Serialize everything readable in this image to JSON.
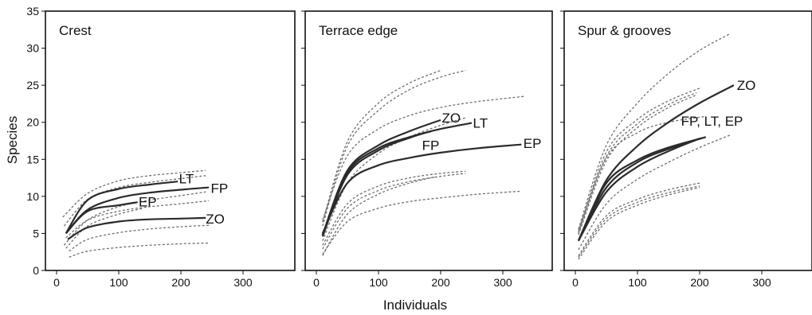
{
  "chart_data": {
    "type": "line",
    "ylabel": "Species",
    "xlabel": "Individuals",
    "xlim": [
      0,
      390
    ],
    "ylim": [
      0,
      35
    ],
    "x_ticks": [
      0,
      100,
      200,
      300
    ],
    "y_ticks": [
      0,
      5,
      10,
      15,
      20,
      25,
      30,
      35
    ],
    "grid": false,
    "panels": [
      {
        "title": "Crest",
        "series": [
          {
            "name": "LT",
            "style": "solid",
            "x": [
              15,
              50,
              100,
              150,
              195
            ],
            "y": [
              5,
              9.5,
              11.0,
              11.6,
              12.0
            ]
          },
          {
            "name": "FP",
            "style": "solid",
            "x": [
              15,
              50,
              100,
              150,
              200,
              245
            ],
            "y": [
              5,
              8.2,
              9.8,
              10.5,
              10.9,
              11.2
            ]
          },
          {
            "name": "EP",
            "style": "solid",
            "x": [
              15,
              50,
              100,
              130
            ],
            "y": [
              5,
              8.0,
              8.8,
              9.2
            ]
          },
          {
            "name": "ZO",
            "style": "solid",
            "x": [
              18,
              50,
              100,
              150,
              200,
              240
            ],
            "y": [
              4.2,
              5.8,
              6.6,
              6.9,
              7.0,
              7.1
            ]
          },
          {
            "name": "",
            "style": "dotted",
            "x": [
              10,
              50,
              100,
              150,
              200,
              240
            ],
            "y": [
              7.2,
              10.4,
              12.1,
              12.8,
              13.2,
              13.5
            ]
          },
          {
            "name": "",
            "style": "dotted",
            "x": [
              12,
              50,
              100,
              150,
              200,
              240
            ],
            "y": [
              6.0,
              9.6,
              11.2,
              11.9,
              12.4,
              12.8
            ]
          },
          {
            "name": "",
            "style": "dotted",
            "x": [
              12,
              50,
              100,
              150,
              200,
              240
            ],
            "y": [
              3.4,
              6.8,
              8.6,
              9.5,
              10.1,
              10.6
            ]
          },
          {
            "name": "",
            "style": "dotted",
            "x": [
              15,
              50,
              100,
              140
            ],
            "y": [
              3.0,
              6.0,
              7.6,
              8.4
            ]
          },
          {
            "name": "",
            "style": "dotted",
            "x": [
              15,
              50,
              100,
              150,
              200,
              245
            ],
            "y": [
              4.4,
              6.8,
              8.0,
              8.6,
              9.0,
              9.4
            ]
          },
          {
            "name": "",
            "style": "dotted",
            "x": [
              20,
              50,
              100,
              150,
              200,
              245
            ],
            "y": [
              2.6,
              4.2,
              5.1,
              5.6,
              5.9,
              6.1
            ]
          },
          {
            "name": "",
            "style": "dotted",
            "x": [
              20,
              50,
              100,
              150,
              200,
              245
            ],
            "y": [
              1.8,
              2.6,
              3.1,
              3.4,
              3.6,
              3.7
            ]
          }
        ],
        "labels": [
          {
            "text": "LT",
            "x": 197,
            "y": 12.4
          },
          {
            "text": "FP",
            "x": 248,
            "y": 11.1
          },
          {
            "text": "EP",
            "x": 132,
            "y": 9.3
          },
          {
            "text": "ZO",
            "x": 240,
            "y": 7.0
          }
        ]
      },
      {
        "title": "Terrace edge",
        "series": [
          {
            "name": "ZO",
            "style": "solid",
            "x": [
              10,
              50,
              100,
              150,
              200
            ],
            "y": [
              4.8,
              13.5,
              16.9,
              18.8,
              20.3
            ]
          },
          {
            "name": "LT",
            "style": "solid",
            "x": [
              10,
              50,
              100,
              150,
              200,
              250
            ],
            "y": [
              4.6,
              13.2,
              16.5,
              18.0,
              19.1,
              19.9
            ]
          },
          {
            "name": "FP",
            "style": "solid",
            "x": [
              10,
              50,
              100,
              150,
              185
            ],
            "y": [
              4.6,
              12.9,
              16.2,
              17.9,
              18.8
            ]
          },
          {
            "name": "EP",
            "style": "solid",
            "x": [
              10,
              50,
              100,
              150,
              200,
              260,
              330
            ],
            "y": [
              5.0,
              11.8,
              14.2,
              15.2,
              15.9,
              16.5,
              17.0
            ]
          },
          {
            "name": "",
            "style": "dotted",
            "x": [
              10,
              50,
              100,
              150,
              200
            ],
            "y": [
              6.5,
              17.4,
              22.6,
              25.3,
              27.0
            ]
          },
          {
            "name": "",
            "style": "dotted",
            "x": [
              10,
              50,
              100,
              150,
              200,
              240
            ],
            "y": [
              6.0,
              16.8,
              21.6,
              24.4,
              26.1,
              27.0
            ]
          },
          {
            "name": "",
            "style": "dotted",
            "x": [
              10,
              50,
              100,
              150,
              200,
              260,
              335
            ],
            "y": [
              6.8,
              15.5,
              19.1,
              20.9,
              22.0,
              22.8,
              23.5
            ]
          },
          {
            "name": "",
            "style": "dotted",
            "x": [
              10,
              50,
              100,
              150,
              200,
              240
            ],
            "y": [
              4.0,
              11.8,
              15.8,
              18.0,
              19.6,
              20.6
            ]
          },
          {
            "name": "",
            "style": "dotted",
            "x": [
              10,
              50,
              100,
              150,
              200,
              240
            ],
            "y": [
              3.4,
              9.0,
              11.4,
              12.5,
              13.1,
              13.4
            ]
          },
          {
            "name": "",
            "style": "dotted",
            "x": [
              10,
              50,
              100,
              150,
              200,
              240
            ],
            "y": [
              2.9,
              8.4,
              10.8,
              12.0,
              12.7,
              13.1
            ]
          },
          {
            "name": "",
            "style": "dotted",
            "x": [
              10,
              50,
              100,
              150,
              200,
              260,
              330
            ],
            "y": [
              2.2,
              6.6,
              8.4,
              9.3,
              9.8,
              10.3,
              10.7
            ]
          },
          {
            "name": "",
            "style": "dotted",
            "x": [
              10,
              50,
              100,
              150,
              190
            ],
            "y": [
              2.0,
              7.6,
              10.3,
              11.8,
              12.6
            ]
          }
        ],
        "labels": [
          {
            "text": "ZO",
            "x": 202,
            "y": 20.6
          },
          {
            "text": "LT",
            "x": 252,
            "y": 19.9
          },
          {
            "text": "FP",
            "x": 170,
            "y": 16.9
          },
          {
            "text": "EP",
            "x": 333,
            "y": 17.2
          }
        ]
      },
      {
        "title": "Spur & grooves",
        "series": [
          {
            "name": "ZO",
            "style": "solid",
            "x": [
              5,
              50,
              100,
              150,
              200,
              255
            ],
            "y": [
              4.0,
              12.2,
              16.8,
              20.0,
              22.6,
              25.0
            ]
          },
          {
            "name": "FP",
            "style": "solid",
            "x": [
              5,
              50,
              100,
              150,
              210
            ],
            "y": [
              4.0,
              11.8,
              14.9,
              16.6,
              18.0
            ]
          },
          {
            "name": "LT",
            "style": "solid",
            "x": [
              5,
              50,
              100,
              150,
              205
            ],
            "y": [
              4.0,
              11.2,
              14.6,
              16.4,
              17.9
            ]
          },
          {
            "name": "EP",
            "style": "solid",
            "x": [
              5,
              50,
              100,
              150,
              200
            ],
            "y": [
              4.0,
              10.6,
              14.0,
              16.1,
              17.8
            ]
          },
          {
            "name": "",
            "style": "dotted",
            "x": [
              5,
              50,
              100,
              150,
              200,
              250
            ],
            "y": [
              5.6,
              16.9,
              22.6,
              26.6,
              29.7,
              32.0
            ]
          },
          {
            "name": "",
            "style": "dotted",
            "x": [
              5,
              50,
              100,
              150,
              200
            ],
            "y": [
              5.2,
              16.0,
              20.4,
              22.9,
              24.6
            ]
          },
          {
            "name": "",
            "style": "dotted",
            "x": [
              5,
              50,
              100,
              150,
              195
            ],
            "y": [
              5.0,
              15.4,
              19.8,
              22.4,
              24.0
            ]
          },
          {
            "name": "",
            "style": "dotted",
            "x": [
              5,
              50,
              100,
              150,
              195
            ],
            "y": [
              4.8,
              14.8,
              19.3,
              22.0,
              23.7
            ]
          },
          {
            "name": "",
            "style": "dotted",
            "x": [
              5,
              50,
              100,
              150,
              210
            ],
            "y": [
              5.4,
              15.2,
              18.6,
              20.0,
              20.8
            ]
          },
          {
            "name": "",
            "style": "dotted",
            "x": [
              5,
              50,
              100,
              150,
              200,
              250
            ],
            "y": [
              2.8,
              9.0,
              12.3,
              14.6,
              16.6,
              18.3
            ]
          },
          {
            "name": "",
            "style": "dotted",
            "x": [
              5,
              50,
              100,
              150,
              200
            ],
            "y": [
              2.0,
              7.4,
              9.6,
              10.9,
              11.8
            ]
          },
          {
            "name": "",
            "style": "dotted",
            "x": [
              5,
              50,
              100,
              150,
              200
            ],
            "y": [
              1.8,
              7.0,
              9.2,
              10.5,
              11.4
            ]
          },
          {
            "name": "",
            "style": "dotted",
            "x": [
              5,
              50,
              100,
              150,
              200
            ],
            "y": [
              1.5,
              6.6,
              8.8,
              10.2,
              11.2
            ]
          }
        ],
        "labels": [
          {
            "text": "ZO",
            "x": 260,
            "y": 25.0
          },
          {
            "text": "FP, LT, EP",
            "x": 170,
            "y": 20.2
          }
        ]
      }
    ]
  }
}
